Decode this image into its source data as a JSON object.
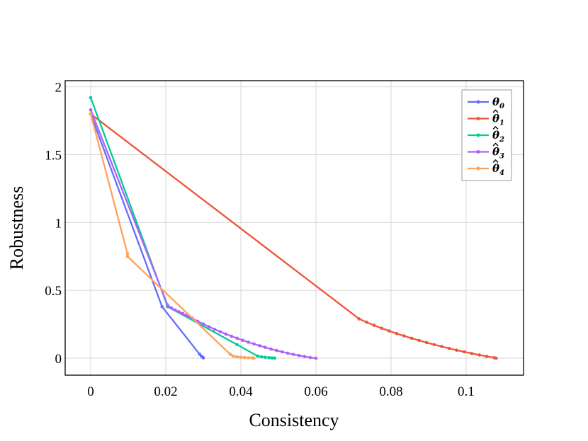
{
  "chart_data": {
    "type": "line",
    "xlabel": "Consistency",
    "ylabel": "Robustness",
    "xlim": [
      -0.0068,
      0.1153
    ],
    "ylim": [
      -0.125,
      2.045
    ],
    "x_ticks": [
      0,
      0.02,
      0.04,
      0.06,
      0.08,
      0.1
    ],
    "x_tick_labels": [
      "0",
      "0.02",
      "0.04",
      "0.06",
      "0.08",
      "0.1"
    ],
    "y_ticks": [
      0,
      0.5,
      1,
      1.5,
      2
    ],
    "y_tick_labels": [
      "0",
      "0.5",
      "1",
      "1.5",
      "2"
    ],
    "grid": true,
    "legend_position": "top-right",
    "series": [
      {
        "name": "θ0",
        "label_base": "θ",
        "label_sub": "0",
        "hat": false,
        "color": "#636efa",
        "points": [
          [
            0,
            1.8
          ],
          [
            0.019,
            0.38
          ],
          [
            0.029,
            0.03
          ],
          [
            0.0295,
            0.015
          ],
          [
            0.0298,
            0.008
          ],
          [
            0.03,
            0.003
          ]
        ]
      },
      {
        "name": "θ̂1",
        "label_base": "θ",
        "label_sub": "1",
        "hat": true,
        "color": "#ef553b",
        "points": [
          [
            0,
            1.8
          ],
          [
            0.0715,
            0.29
          ],
          [
            0.0735,
            0.265
          ],
          [
            0.0755,
            0.242
          ],
          [
            0.0775,
            0.221
          ],
          [
            0.0795,
            0.201
          ],
          [
            0.0815,
            0.182
          ],
          [
            0.0835,
            0.164
          ],
          [
            0.0855,
            0.147
          ],
          [
            0.0875,
            0.131
          ],
          [
            0.0895,
            0.115
          ],
          [
            0.0915,
            0.1
          ],
          [
            0.0935,
            0.086
          ],
          [
            0.0955,
            0.072
          ],
          [
            0.0975,
            0.059
          ],
          [
            0.0995,
            0.047
          ],
          [
            0.1015,
            0.035
          ],
          [
            0.1035,
            0.024
          ],
          [
            0.1055,
            0.013
          ],
          [
            0.1075,
            0.004
          ],
          [
            0.108,
            0.0
          ]
        ]
      },
      {
        "name": "θ̂2",
        "label_base": "θ",
        "label_sub": "2",
        "hat": true,
        "color": "#00cc96",
        "points": [
          [
            0,
            1.92
          ],
          [
            0.0205,
            0.38
          ],
          [
            0.039,
            0.1
          ],
          [
            0.0445,
            0.015
          ],
          [
            0.0455,
            0.01
          ],
          [
            0.0465,
            0.007
          ],
          [
            0.0475,
            0.004
          ],
          [
            0.0483,
            0.002
          ],
          [
            0.049,
            0.001
          ]
        ]
      },
      {
        "name": "θ̂3",
        "label_base": "θ",
        "label_sub": "3",
        "hat": true,
        "color": "#ab63fa",
        "points": [
          [
            0,
            1.83
          ],
          [
            0.0205,
            0.39
          ],
          [
            0.0215,
            0.37
          ],
          [
            0.0225,
            0.355
          ],
          [
            0.0235,
            0.342
          ],
          [
            0.0245,
            0.33
          ],
          [
            0.0255,
            0.315
          ],
          [
            0.027,
            0.295
          ],
          [
            0.0285,
            0.272
          ],
          [
            0.03,
            0.252
          ],
          [
            0.0315,
            0.232
          ],
          [
            0.033,
            0.213
          ],
          [
            0.0345,
            0.195
          ],
          [
            0.036,
            0.178
          ],
          [
            0.0375,
            0.162
          ],
          [
            0.039,
            0.147
          ],
          [
            0.0405,
            0.132
          ],
          [
            0.042,
            0.118
          ],
          [
            0.0435,
            0.105
          ],
          [
            0.045,
            0.092
          ],
          [
            0.0465,
            0.08
          ],
          [
            0.048,
            0.068
          ],
          [
            0.0495,
            0.057
          ],
          [
            0.051,
            0.047
          ],
          [
            0.0525,
            0.037
          ],
          [
            0.054,
            0.028
          ],
          [
            0.0555,
            0.02
          ],
          [
            0.057,
            0.012
          ],
          [
            0.0585,
            0.005
          ],
          [
            0.06,
            0.0
          ]
        ]
      },
      {
        "name": "θ̂4",
        "label_base": "θ",
        "label_sub": "4",
        "hat": true,
        "color": "#ffa15a",
        "points": [
          [
            0,
            1.8
          ],
          [
            0.0098,
            0.77
          ],
          [
            0.0098,
            0.75
          ],
          [
            0.0372,
            0.028
          ],
          [
            0.038,
            0.015
          ],
          [
            0.039,
            0.01
          ],
          [
            0.04,
            0.007
          ],
          [
            0.041,
            0.005
          ],
          [
            0.042,
            0.003
          ],
          [
            0.043,
            0.002
          ],
          [
            0.0435,
            0.001
          ]
        ]
      }
    ]
  }
}
